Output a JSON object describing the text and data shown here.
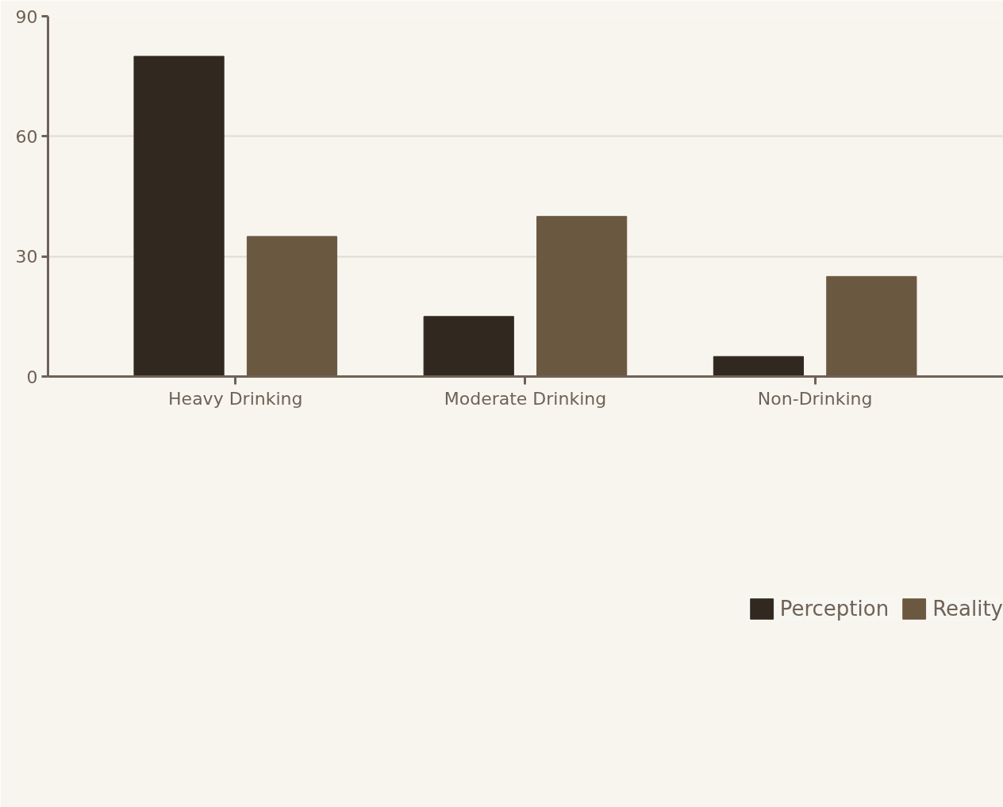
{
  "chart_data": {
    "type": "bar",
    "categories": [
      "Heavy Drinking",
      "Moderate Drinking",
      "Non-Drinking"
    ],
    "series": [
      {
        "name": "Perception",
        "color": "#312820",
        "values": [
          80,
          15,
          5
        ]
      },
      {
        "name": "Reality",
        "color": "#6b5840",
        "values": [
          35,
          40,
          25
        ]
      }
    ],
    "ylim": [
      0,
      90
    ],
    "yticks": [
      0,
      30,
      60,
      90
    ],
    "grid": "y",
    "legend": "bottom"
  }
}
